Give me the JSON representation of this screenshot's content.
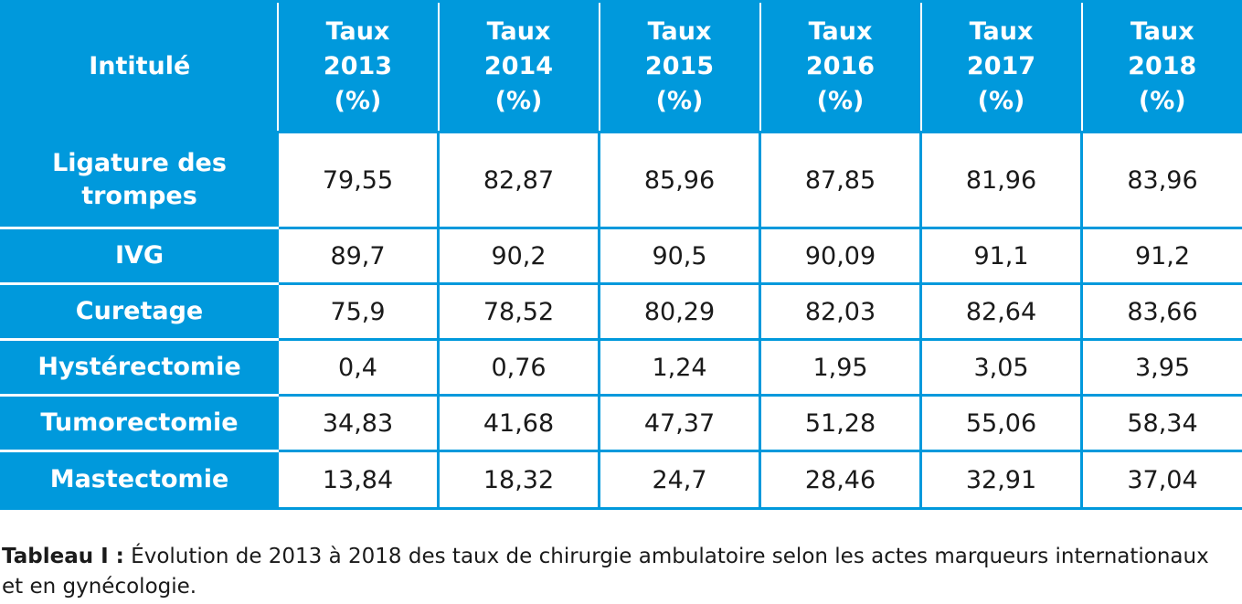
{
  "table": {
    "header": {
      "label_col": "Intitulé",
      "year_cols": [
        {
          "line1": "Taux",
          "line2": "2013",
          "line3": "(%)"
        },
        {
          "line1": "Taux",
          "line2": "2014",
          "line3": "(%)"
        },
        {
          "line1": "Taux",
          "line2": "2015",
          "line3": "(%)"
        },
        {
          "line1": "Taux",
          "line2": "2016",
          "line3": "(%)"
        },
        {
          "line1": "Taux",
          "line2": "2017",
          "line3": "(%)"
        },
        {
          "line1": "Taux",
          "line2": "2018",
          "line3": "(%)"
        }
      ]
    },
    "rows": [
      {
        "label_line1": "Ligature des",
        "label_line2": "trompes",
        "values": [
          "79,55",
          "82,87",
          "85,96",
          "87,85",
          "81,96",
          "83,96"
        ]
      },
      {
        "label_line1": "IVG",
        "label_line2": "",
        "values": [
          "89,7",
          "90,2",
          "90,5",
          "90,09",
          "91,1",
          "91,2"
        ]
      },
      {
        "label_line1": "Curetage",
        "label_line2": "",
        "values": [
          "75,9",
          "78,52",
          "80,29",
          "82,03",
          "82,64",
          "83,66"
        ]
      },
      {
        "label_line1": "Hystérectomie",
        "label_line2": "",
        "values": [
          "0,4",
          "0,76",
          "1,24",
          "1,95",
          "3,05",
          "3,95"
        ]
      },
      {
        "label_line1": "Tumorectomie",
        "label_line2": "",
        "values": [
          "34,83",
          "41,68",
          "47,37",
          "51,28",
          "55,06",
          "58,34"
        ]
      },
      {
        "label_line1": "Mastectomie",
        "label_line2": "",
        "values": [
          "13,84",
          "18,32",
          "24,7",
          "28,46",
          "32,91",
          "37,04"
        ]
      }
    ]
  },
  "caption": {
    "label": "Tableau I :",
    "text": " Évolution de 2013 à 2018 des taux de chirurgie ambulatoire selon les actes marqueurs internationaux et en gynécologie."
  },
  "colors": {
    "header_bg": "#0099dc",
    "header_text": "#ffffff",
    "cell_bg": "#ffffff",
    "cell_text": "#1a1a1a"
  }
}
